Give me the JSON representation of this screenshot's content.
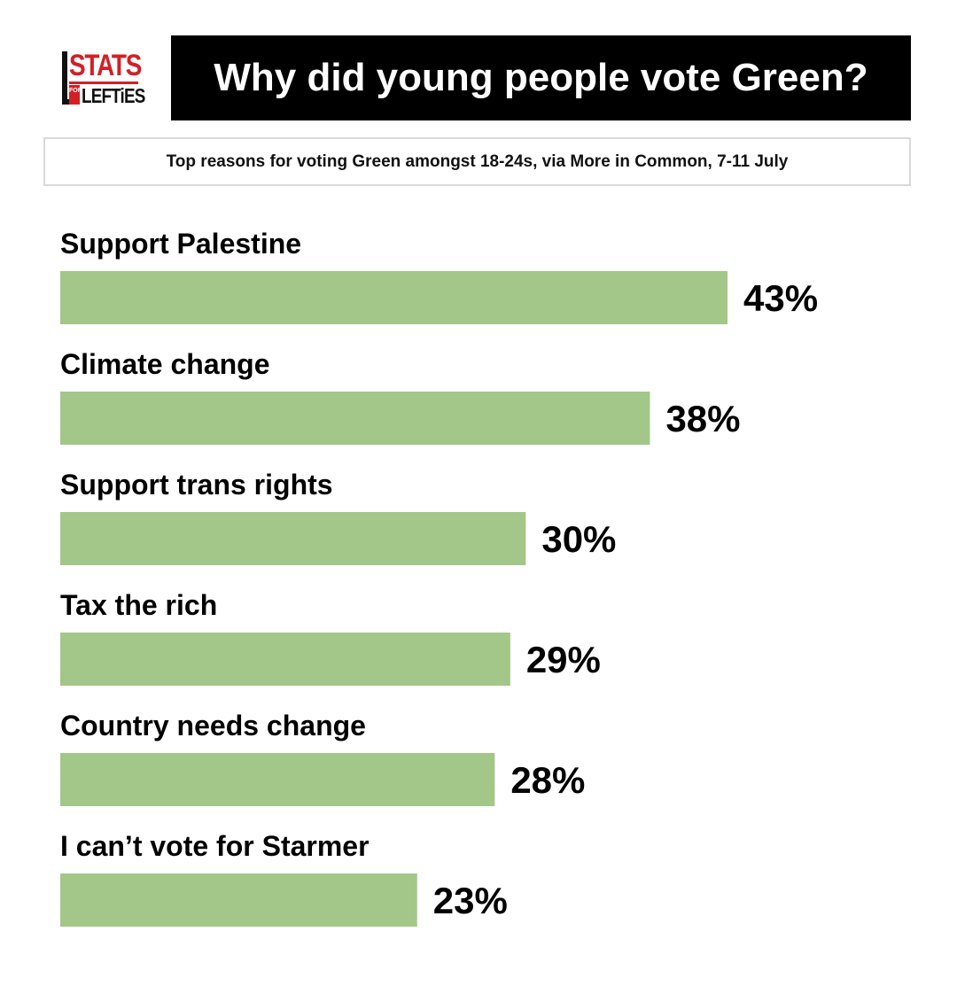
{
  "logo": {
    "top_text": "STATS",
    "small_text": "FOR",
    "bottom_text": "LEFTiES"
  },
  "colors": {
    "bar": "#a2c788",
    "title_bg": "#000000",
    "logo_red": "#d21f26"
  },
  "chart_data": {
    "type": "bar",
    "orientation": "horizontal",
    "title": "Why did young people vote Green?",
    "subtitle": "Top reasons for voting Green amongst 18-24s, via More in Common, 7-11 July",
    "categories": [
      "Support Palestine",
      "Climate change",
      "Support trans rights",
      "Tax the rich",
      "Country needs change",
      "I can’t vote for Starmer"
    ],
    "values": [
      43,
      38,
      30,
      29,
      28,
      23
    ],
    "value_labels": [
      "43%",
      "38%",
      "30%",
      "29%",
      "28%",
      "23%"
    ],
    "unit": "%",
    "grid": false,
    "legend": "none"
  }
}
